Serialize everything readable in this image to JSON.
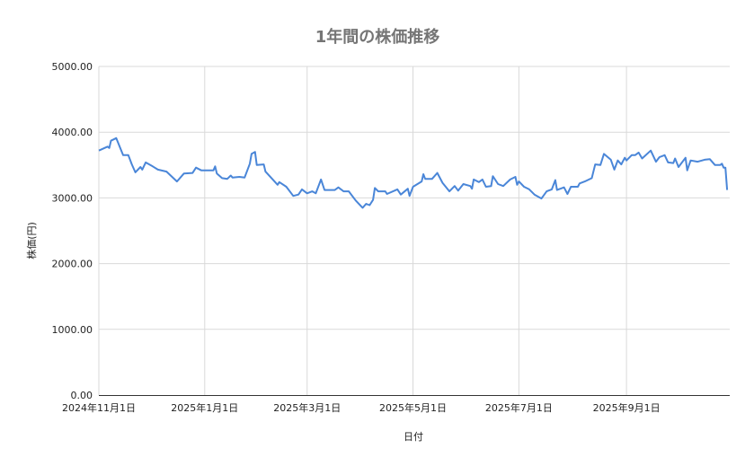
{
  "chart_data": {
    "type": "line",
    "title": "1年間の株価推移",
    "xlabel": "日付",
    "ylabel": "株価(円)",
    "ylim": [
      0,
      5000
    ],
    "xlim": [
      "2024-11-01",
      "2025-10-29"
    ],
    "grid": true,
    "legend": "none",
    "line_color": "#4a86d8",
    "y_ticks": [
      "0.00",
      "1000.00",
      "2000.00",
      "3000.00",
      "4000.00",
      "5000.00"
    ],
    "y_tick_values": [
      0,
      1000,
      2000,
      3000,
      4000,
      5000
    ],
    "x_ticks": [
      {
        "date": "2024-11-01",
        "label": "2024年11月1日"
      },
      {
        "date": "2025-01-01",
        "label": "2025年1月1日"
      },
      {
        "date": "2025-03-01",
        "label": "2025年3月1日"
      },
      {
        "date": "2025-05-01",
        "label": "2025年5月1日"
      },
      {
        "date": "2025-07-01",
        "label": "2025年7月1日"
      },
      {
        "date": "2025-09-01",
        "label": "2025年9月1日"
      }
    ],
    "series": [
      {
        "x": [
          "2024-11-01",
          "2024-11-06",
          "2024-11-07",
          "2024-11-08",
          "2024-11-11",
          "2024-11-15",
          "2024-11-18",
          "2024-11-20",
          "2024-11-22",
          "2024-11-25",
          "2024-11-26",
          "2024-11-28",
          "2024-12-02",
          "2024-12-05",
          "2024-12-10",
          "2024-12-16",
          "2024-12-20",
          "2024-12-25",
          "2024-12-27",
          "2024-12-30",
          "2025-01-06",
          "2025-01-07",
          "2025-01-08",
          "2025-01-11",
          "2025-01-14",
          "2025-01-16",
          "2025-01-17",
          "2025-01-21",
          "2025-01-24",
          "2025-01-27",
          "2025-01-28",
          "2025-01-30",
          "2025-01-31",
          "2025-02-04",
          "2025-02-05",
          "2025-02-12",
          "2025-02-13",
          "2025-02-17",
          "2025-02-21",
          "2025-02-24",
          "2025-02-26",
          "2025-03-01",
          "2025-03-04",
          "2025-03-06",
          "2025-03-07",
          "2025-03-09",
          "2025-03-11",
          "2025-03-17",
          "2025-03-19",
          "2025-03-22",
          "2025-03-25",
          "2025-03-29",
          "2025-04-02",
          "2025-04-04",
          "2025-04-06",
          "2025-04-08",
          "2025-04-09",
          "2025-04-11",
          "2025-04-15",
          "2025-04-16",
          "2025-04-22",
          "2025-04-24",
          "2025-04-28",
          "2025-04-29",
          "2025-05-01",
          "2025-05-06",
          "2025-05-07",
          "2025-05-08",
          "2025-05-12",
          "2025-05-15",
          "2025-05-18",
          "2025-05-22",
          "2025-05-25",
          "2025-05-27",
          "2025-05-30",
          "2025-06-03",
          "2025-06-04",
          "2025-06-05",
          "2025-06-08",
          "2025-06-10",
          "2025-06-12",
          "2025-06-15",
          "2025-06-16",
          "2025-06-19",
          "2025-06-22",
          "2025-06-26",
          "2025-06-29",
          "2025-06-30",
          "2025-07-01",
          "2025-07-04",
          "2025-07-07",
          "2025-07-10",
          "2025-07-14",
          "2025-07-17",
          "2025-07-20",
          "2025-07-22",
          "2025-07-23",
          "2025-07-27",
          "2025-07-29",
          "2025-07-31",
          "2025-08-04",
          "2025-08-05",
          "2025-08-08",
          "2025-08-12",
          "2025-08-14",
          "2025-08-17",
          "2025-08-19",
          "2025-08-23",
          "2025-08-25",
          "2025-08-27",
          "2025-08-29",
          "2025-08-31",
          "2025-09-01",
          "2025-09-04",
          "2025-09-06",
          "2025-09-08",
          "2025-09-10",
          "2025-09-15",
          "2025-09-18",
          "2025-09-20",
          "2025-09-23",
          "2025-09-25",
          "2025-09-28",
          "2025-09-29",
          "2025-10-01",
          "2025-10-05",
          "2025-10-06",
          "2025-10-08",
          "2025-10-12",
          "2025-10-16",
          "2025-10-19",
          "2025-10-22",
          "2025-10-25",
          "2025-10-26",
          "2025-10-27",
          "2025-10-28",
          "2025-10-29"
        ],
        "y": [
          3720,
          3780,
          3760,
          3870,
          3910,
          3650,
          3650,
          3510,
          3390,
          3470,
          3430,
          3540,
          3480,
          3430,
          3400,
          3250,
          3370,
          3380,
          3460,
          3420,
          3420,
          3480,
          3370,
          3300,
          3290,
          3340,
          3310,
          3320,
          3310,
          3520,
          3670,
          3700,
          3500,
          3510,
          3400,
          3200,
          3240,
          3170,
          3030,
          3050,
          3130,
          3070,
          3100,
          3070,
          3140,
          3280,
          3120,
          3120,
          3160,
          3100,
          3100,
          2960,
          2850,
          2910,
          2890,
          2970,
          3150,
          3100,
          3100,
          3060,
          3130,
          3050,
          3140,
          3030,
          3170,
          3250,
          3360,
          3290,
          3290,
          3380,
          3230,
          3100,
          3180,
          3110,
          3210,
          3180,
          3140,
          3280,
          3240,
          3280,
          3170,
          3180,
          3330,
          3210,
          3180,
          3280,
          3320,
          3200,
          3250,
          3170,
          3130,
          3050,
          2990,
          3100,
          3130,
          3270,
          3120,
          3160,
          3060,
          3170,
          3170,
          3220,
          3250,
          3300,
          3510,
          3500,
          3670,
          3580,
          3430,
          3570,
          3510,
          3610,
          3570,
          3650,
          3650,
          3690,
          3600,
          3720,
          3550,
          3620,
          3650,
          3540,
          3530,
          3600,
          3470,
          3610,
          3420,
          3570,
          3550,
          3580,
          3590,
          3500,
          3500,
          3520,
          3460,
          3460,
          3120
        ]
      }
    ]
  }
}
